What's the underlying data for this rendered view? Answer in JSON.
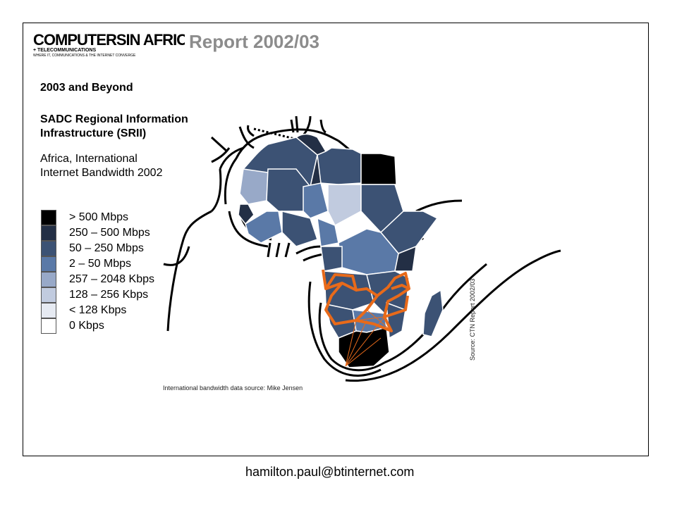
{
  "header": {
    "logo_text_main": "COMPUTERSIN AFRICA",
    "logo_text_sub": "+ TELECOMMUNICATIONS",
    "logo_text_tag": "WHERE IT, COMMUNICATIONS & THE INTERNET CONVERGE",
    "report_title": "Report 2002/03"
  },
  "headings": {
    "title": "2003 and Beyond",
    "project": "SADC Regional Information Infrastructure (SRII)",
    "subtitle": "Africa, International Internet Bandwidth 2002"
  },
  "legend": {
    "items": [
      {
        "label": "> 500 Mbps",
        "color": "#000000"
      },
      {
        "label": "250 – 500 Mbps",
        "color": "#232f45"
      },
      {
        "label": "50 – 250 Mbps",
        "color": "#3c5274"
      },
      {
        "label": "2 – 50 Mbps",
        "color": "#5a79a7"
      },
      {
        "label": "257 – 2048 Kbps",
        "color": "#98a9c8"
      },
      {
        "label": "128 – 256 Kbps",
        "color": "#c1cbdf"
      },
      {
        "label": "< 128 Kbps",
        "color": "#e6eaf2"
      },
      {
        "label": "0 Kbps",
        "color": "#ffffff"
      }
    ]
  },
  "map": {
    "colors": {
      "network_orange": "#e86a1a",
      "cable_black": "#000000"
    }
  },
  "sources": {
    "bandwidth": "International bandwidth data source: Mike Jensen",
    "report": "Source: CTN Report 2002/03"
  },
  "footer": {
    "email": "hamilton.paul@btinternet.com"
  }
}
